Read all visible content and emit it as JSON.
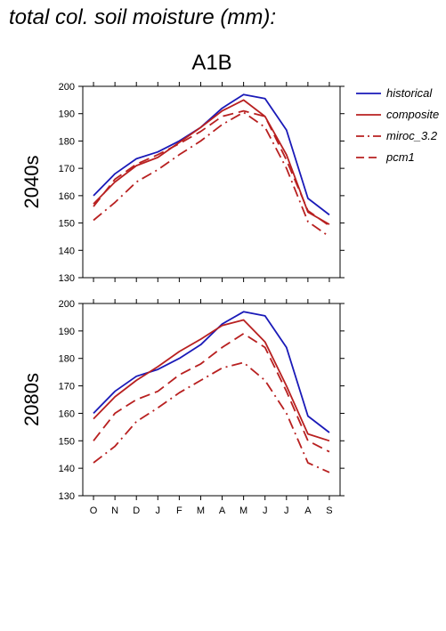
{
  "title": "total col. soil moisture (mm):",
  "scenario": "A1B",
  "legend_placement": "right",
  "chart_data": [
    {
      "type": "line",
      "panel_label": "2040s",
      "categories": [
        "O",
        "N",
        "D",
        "J",
        "F",
        "M",
        "A",
        "M",
        "J",
        "J",
        "A",
        "S"
      ],
      "ylim": [
        130,
        200
      ],
      "yticks": [
        130,
        140,
        150,
        160,
        170,
        180,
        190,
        200
      ],
      "grid": false,
      "series": [
        {
          "name": "historical",
          "color": "#1a1ab8",
          "dash": "solid",
          "values": [
            160,
            168,
            173.5,
            176,
            180,
            185,
            192,
            197,
            195.5,
            184,
            159,
            153
          ]
        },
        {
          "name": "composite",
          "color": "#b82020",
          "dash": "solid",
          "values": [
            157,
            165,
            171,
            174,
            179.5,
            185,
            191,
            195,
            189,
            175,
            154,
            149.5
          ]
        },
        {
          "name": "miroc_3.2",
          "color": "#b82020",
          "dash": "dashdot",
          "values": [
            151,
            157.5,
            165,
            169.5,
            175,
            180,
            186,
            190.5,
            185,
            170,
            150.5,
            145
          ]
        },
        {
          "name": "pcm1",
          "color": "#b82020",
          "dash": "dash",
          "values": [
            156,
            166,
            171.5,
            175,
            179,
            183.5,
            189,
            191,
            189,
            173,
            154.5,
            149
          ]
        }
      ]
    },
    {
      "type": "line",
      "panel_label": "2080s",
      "categories": [
        "O",
        "N",
        "D",
        "J",
        "F",
        "M",
        "A",
        "M",
        "J",
        "J",
        "A",
        "S"
      ],
      "ylim": [
        130,
        200
      ],
      "yticks": [
        130,
        140,
        150,
        160,
        170,
        180,
        190,
        200
      ],
      "grid": false,
      "series": [
        {
          "name": "historical",
          "color": "#1a1ab8",
          "dash": "solid",
          "values": [
            160,
            168,
            173.5,
            176,
            180,
            185,
            192.5,
            197,
            195.5,
            184,
            159,
            153
          ]
        },
        {
          "name": "composite",
          "color": "#b82020",
          "dash": "solid",
          "values": [
            158,
            166,
            172,
            177,
            182.5,
            187,
            192,
            194,
            186,
            170,
            152.5,
            150
          ]
        },
        {
          "name": "miroc_3.2",
          "color": "#b82020",
          "dash": "dashdot",
          "values": [
            142,
            148,
            157,
            162,
            167.5,
            172,
            176.5,
            178.5,
            172,
            160,
            142,
            138.5
          ]
        },
        {
          "name": "pcm1",
          "color": "#b82020",
          "dash": "dash",
          "values": [
            150,
            160,
            165,
            168,
            174,
            178,
            184,
            189,
            184,
            168,
            150,
            146
          ]
        }
      ]
    }
  ]
}
